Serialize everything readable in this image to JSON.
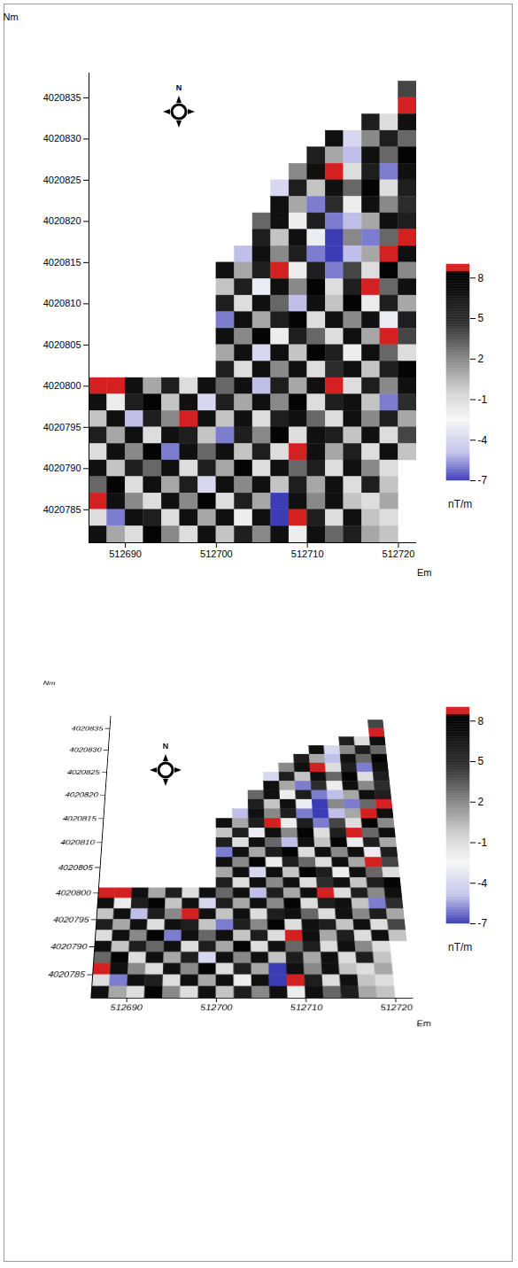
{
  "chart_data": [
    {
      "type": "heatmap",
      "x_label": "Em",
      "y_label": "Nm",
      "north_label": "N",
      "xlim": [
        512686,
        512722
      ],
      "ylim": [
        4020781,
        4020838
      ],
      "xticks": [
        512690,
        512700,
        512710,
        512720
      ],
      "yticks": [
        4020785,
        4020790,
        4020795,
        4020800,
        4020805,
        4020810,
        4020815,
        4020820,
        4020825,
        4020830,
        4020835
      ],
      "cells": {
        "x_min": 512686,
        "y_max": 4020837,
        "size": 2,
        "rows": [
          [
            null,
            null,
            null,
            null,
            null,
            null,
            null,
            null,
            null,
            null,
            null,
            null,
            null,
            null,
            null,
            null,
            null,
            4
          ],
          [
            null,
            null,
            null,
            null,
            null,
            null,
            null,
            null,
            null,
            null,
            null,
            null,
            null,
            null,
            null,
            null,
            null,
            9
          ],
          [
            null,
            null,
            null,
            null,
            null,
            null,
            null,
            null,
            null,
            null,
            null,
            null,
            null,
            null,
            null,
            6,
            -1,
            7
          ],
          [
            null,
            null,
            null,
            null,
            null,
            null,
            null,
            null,
            null,
            null,
            null,
            null,
            null,
            7,
            -4,
            2,
            6,
            3
          ],
          [
            null,
            null,
            null,
            null,
            null,
            null,
            null,
            null,
            null,
            null,
            null,
            null,
            6,
            1,
            -5,
            7,
            3,
            8
          ],
          [
            null,
            null,
            null,
            null,
            null,
            null,
            null,
            null,
            null,
            null,
            null,
            2,
            7,
            9,
            -1,
            6,
            -6,
            7
          ],
          [
            null,
            null,
            null,
            null,
            null,
            null,
            null,
            null,
            null,
            null,
            -4,
            6,
            0,
            7,
            3,
            8,
            -1,
            6
          ],
          [
            null,
            null,
            null,
            null,
            null,
            null,
            null,
            null,
            null,
            null,
            7,
            1,
            -6,
            5,
            -2,
            7,
            2,
            5
          ],
          [
            null,
            null,
            null,
            null,
            null,
            null,
            null,
            null,
            null,
            3,
            7,
            -2,
            6,
            -6,
            -5,
            1,
            7,
            6
          ],
          [
            null,
            null,
            null,
            null,
            null,
            null,
            null,
            null,
            null,
            6,
            0,
            7,
            -3,
            -7,
            2,
            -6,
            3,
            9
          ],
          [
            null,
            null,
            null,
            null,
            null,
            null,
            null,
            null,
            -5,
            7,
            2,
            6,
            -6,
            -7,
            -5,
            1,
            9,
            7
          ],
          [
            null,
            null,
            null,
            null,
            null,
            null,
            null,
            7,
            1,
            6,
            9,
            -2,
            6,
            -6,
            4,
            -1,
            8,
            2
          ],
          [
            null,
            null,
            null,
            null,
            null,
            null,
            null,
            0,
            6,
            -3,
            7,
            2,
            8,
            -1,
            6,
            9,
            3,
            7
          ],
          [
            null,
            null,
            null,
            null,
            null,
            null,
            null,
            6,
            -1,
            7,
            3,
            -5,
            7,
            0,
            8,
            -2,
            6,
            1
          ],
          [
            null,
            null,
            null,
            null,
            null,
            null,
            null,
            -6,
            7,
            1,
            6,
            8,
            -1,
            7,
            2,
            7,
            -3,
            6
          ],
          [
            null,
            null,
            null,
            null,
            null,
            null,
            null,
            7,
            2,
            8,
            -2,
            6,
            3,
            -1,
            7,
            1,
            9,
            4
          ],
          [
            null,
            null,
            null,
            null,
            null,
            null,
            null,
            1,
            7,
            -4,
            7,
            0,
            8,
            6,
            -2,
            7,
            3,
            -1
          ],
          [
            null,
            null,
            null,
            null,
            null,
            null,
            null,
            6,
            -1,
            7,
            2,
            7,
            -1,
            5,
            7,
            0,
            6,
            8
          ],
          [
            9,
            9,
            7,
            1,
            6,
            -1,
            7,
            3,
            7,
            -5,
            6,
            1,
            7,
            9,
            -1,
            6,
            2,
            7
          ],
          [
            7,
            -2,
            6,
            8,
            0,
            7,
            -4,
            6,
            1,
            7,
            2,
            8,
            -1,
            6,
            7,
            0,
            -6,
            5
          ],
          [
            0,
            7,
            -5,
            6,
            2,
            9,
            7,
            0,
            7,
            -1,
            6,
            7,
            3,
            -1,
            7,
            2,
            6,
            1
          ],
          [
            6,
            1,
            7,
            -1,
            7,
            6,
            0,
            -6,
            6,
            2,
            8,
            -1,
            7,
            6,
            0,
            7,
            -1,
            4
          ],
          [
            -1,
            7,
            2,
            8,
            -6,
            7,
            3,
            7,
            0,
            6,
            -1,
            9,
            7,
            1,
            6,
            -1,
            7,
            0
          ],
          [
            7,
            0,
            6,
            3,
            7,
            -1,
            6,
            1,
            8,
            -1,
            7,
            3,
            6,
            -1,
            7,
            2,
            -1,
            null
          ],
          [
            3,
            8,
            -1,
            7,
            1,
            6,
            -4,
            7,
            2,
            7,
            0,
            6,
            1,
            7,
            -1,
            6,
            0,
            null
          ],
          [
            9,
            7,
            2,
            -1,
            7,
            2,
            8,
            -1,
            6,
            1,
            -7,
            7,
            2,
            7,
            0,
            -1,
            1,
            null
          ],
          [
            -1,
            -6,
            7,
            6,
            -1,
            7,
            1,
            7,
            -2,
            7,
            -7,
            9,
            6,
            -1,
            7,
            0,
            -1,
            null
          ],
          [
            7,
            1,
            -1,
            8,
            2,
            -1,
            7,
            0,
            6,
            2,
            7,
            -2,
            7,
            3,
            6,
            1,
            0,
            null
          ]
        ]
      },
      "colorbar": {
        "range": [
          -7,
          9
        ],
        "ticks": [
          -7,
          -4,
          -1,
          2,
          5,
          8
        ],
        "label": "nT/m"
      }
    },
    {
      "type": "surface",
      "x_label": "Em",
      "y_label": "Nm",
      "north_label": "N",
      "xlim": [
        512686,
        512722
      ],
      "ylim": [
        4020781,
        4020838
      ],
      "xticks": [
        512690,
        512700,
        512710,
        512720
      ],
      "yticks": [
        4020785,
        4020790,
        4020795,
        4020800,
        4020805,
        4020810,
        4020815,
        4020820,
        4020825,
        4020830,
        4020835
      ],
      "cells": {
        "x_min": 512686,
        "y_max": 4020837,
        "size": 2,
        "rows": [
          [
            null,
            null,
            null,
            null,
            null,
            null,
            null,
            null,
            null,
            null,
            null,
            null,
            null,
            null,
            null,
            null,
            null,
            4
          ],
          [
            null,
            null,
            null,
            null,
            null,
            null,
            null,
            null,
            null,
            null,
            null,
            null,
            null,
            null,
            null,
            null,
            null,
            9
          ],
          [
            null,
            null,
            null,
            null,
            null,
            null,
            null,
            null,
            null,
            null,
            null,
            null,
            null,
            null,
            null,
            6,
            -1,
            7
          ],
          [
            null,
            null,
            null,
            null,
            null,
            null,
            null,
            null,
            null,
            null,
            null,
            null,
            null,
            7,
            -4,
            2,
            6,
            3
          ],
          [
            null,
            null,
            null,
            null,
            null,
            null,
            null,
            null,
            null,
            null,
            null,
            null,
            6,
            1,
            -5,
            7,
            3,
            8
          ],
          [
            null,
            null,
            null,
            null,
            null,
            null,
            null,
            null,
            null,
            null,
            null,
            2,
            7,
            9,
            -1,
            6,
            -6,
            7
          ],
          [
            null,
            null,
            null,
            null,
            null,
            null,
            null,
            null,
            null,
            null,
            -4,
            6,
            0,
            7,
            3,
            8,
            -1,
            6
          ],
          [
            null,
            null,
            null,
            null,
            null,
            null,
            null,
            null,
            null,
            null,
            7,
            1,
            -6,
            5,
            -2,
            7,
            2,
            5
          ],
          [
            null,
            null,
            null,
            null,
            null,
            null,
            null,
            null,
            null,
            3,
            7,
            -2,
            6,
            -6,
            -5,
            1,
            7,
            6
          ],
          [
            null,
            null,
            null,
            null,
            null,
            null,
            null,
            null,
            null,
            6,
            0,
            7,
            -3,
            -7,
            2,
            -6,
            3,
            9
          ],
          [
            null,
            null,
            null,
            null,
            null,
            null,
            null,
            null,
            -5,
            7,
            2,
            6,
            -6,
            -7,
            -5,
            1,
            9,
            7
          ],
          [
            null,
            null,
            null,
            null,
            null,
            null,
            null,
            7,
            1,
            6,
            9,
            -2,
            6,
            -6,
            4,
            -1,
            8,
            2
          ],
          [
            null,
            null,
            null,
            null,
            null,
            null,
            null,
            0,
            6,
            -3,
            7,
            2,
            8,
            -1,
            6,
            9,
            3,
            7
          ],
          [
            null,
            null,
            null,
            null,
            null,
            null,
            null,
            6,
            -1,
            7,
            3,
            -5,
            7,
            0,
            8,
            -2,
            6,
            1
          ],
          [
            null,
            null,
            null,
            null,
            null,
            null,
            null,
            -6,
            7,
            1,
            6,
            8,
            -1,
            7,
            2,
            7,
            -3,
            6
          ],
          [
            null,
            null,
            null,
            null,
            null,
            null,
            null,
            7,
            2,
            8,
            -2,
            6,
            3,
            -1,
            7,
            1,
            9,
            4
          ],
          [
            null,
            null,
            null,
            null,
            null,
            null,
            null,
            1,
            7,
            -4,
            7,
            0,
            8,
            6,
            -2,
            7,
            3,
            -1
          ],
          [
            null,
            null,
            null,
            null,
            null,
            null,
            null,
            6,
            -1,
            7,
            2,
            7,
            -1,
            5,
            7,
            0,
            6,
            8
          ],
          [
            9,
            9,
            7,
            1,
            6,
            -1,
            7,
            3,
            7,
            -5,
            6,
            1,
            7,
            9,
            -1,
            6,
            2,
            7
          ],
          [
            7,
            -2,
            6,
            8,
            0,
            7,
            -4,
            6,
            1,
            7,
            2,
            8,
            -1,
            6,
            7,
            0,
            -6,
            5
          ],
          [
            0,
            7,
            -5,
            6,
            2,
            9,
            7,
            0,
            7,
            -1,
            6,
            7,
            3,
            -1,
            7,
            2,
            6,
            1
          ],
          [
            6,
            1,
            7,
            -1,
            7,
            6,
            0,
            -6,
            6,
            2,
            8,
            -1,
            7,
            6,
            0,
            7,
            -1,
            4
          ],
          [
            -1,
            7,
            2,
            8,
            -6,
            7,
            3,
            7,
            0,
            6,
            -1,
            9,
            7,
            1,
            6,
            -1,
            7,
            0
          ],
          [
            7,
            0,
            6,
            3,
            7,
            -1,
            6,
            1,
            8,
            -1,
            7,
            3,
            6,
            -1,
            7,
            2,
            -1,
            null
          ],
          [
            3,
            8,
            -1,
            7,
            1,
            6,
            -4,
            7,
            2,
            7,
            0,
            6,
            1,
            7,
            -1,
            6,
            0,
            null
          ],
          [
            9,
            7,
            2,
            -1,
            7,
            2,
            8,
            -1,
            6,
            1,
            -7,
            7,
            2,
            7,
            0,
            -1,
            1,
            null
          ],
          [
            -1,
            -6,
            7,
            6,
            -1,
            7,
            1,
            7,
            -2,
            7,
            -7,
            9,
            6,
            -1,
            7,
            0,
            -1,
            null
          ],
          [
            7,
            1,
            -1,
            8,
            2,
            -1,
            7,
            0,
            6,
            2,
            7,
            -2,
            7,
            3,
            6,
            1,
            0,
            null
          ]
        ]
      },
      "colorbar": {
        "range": [
          -7,
          9
        ],
        "ticks": [
          -7,
          -4,
          -1,
          2,
          5,
          8
        ],
        "label": "nT/m"
      }
    }
  ]
}
